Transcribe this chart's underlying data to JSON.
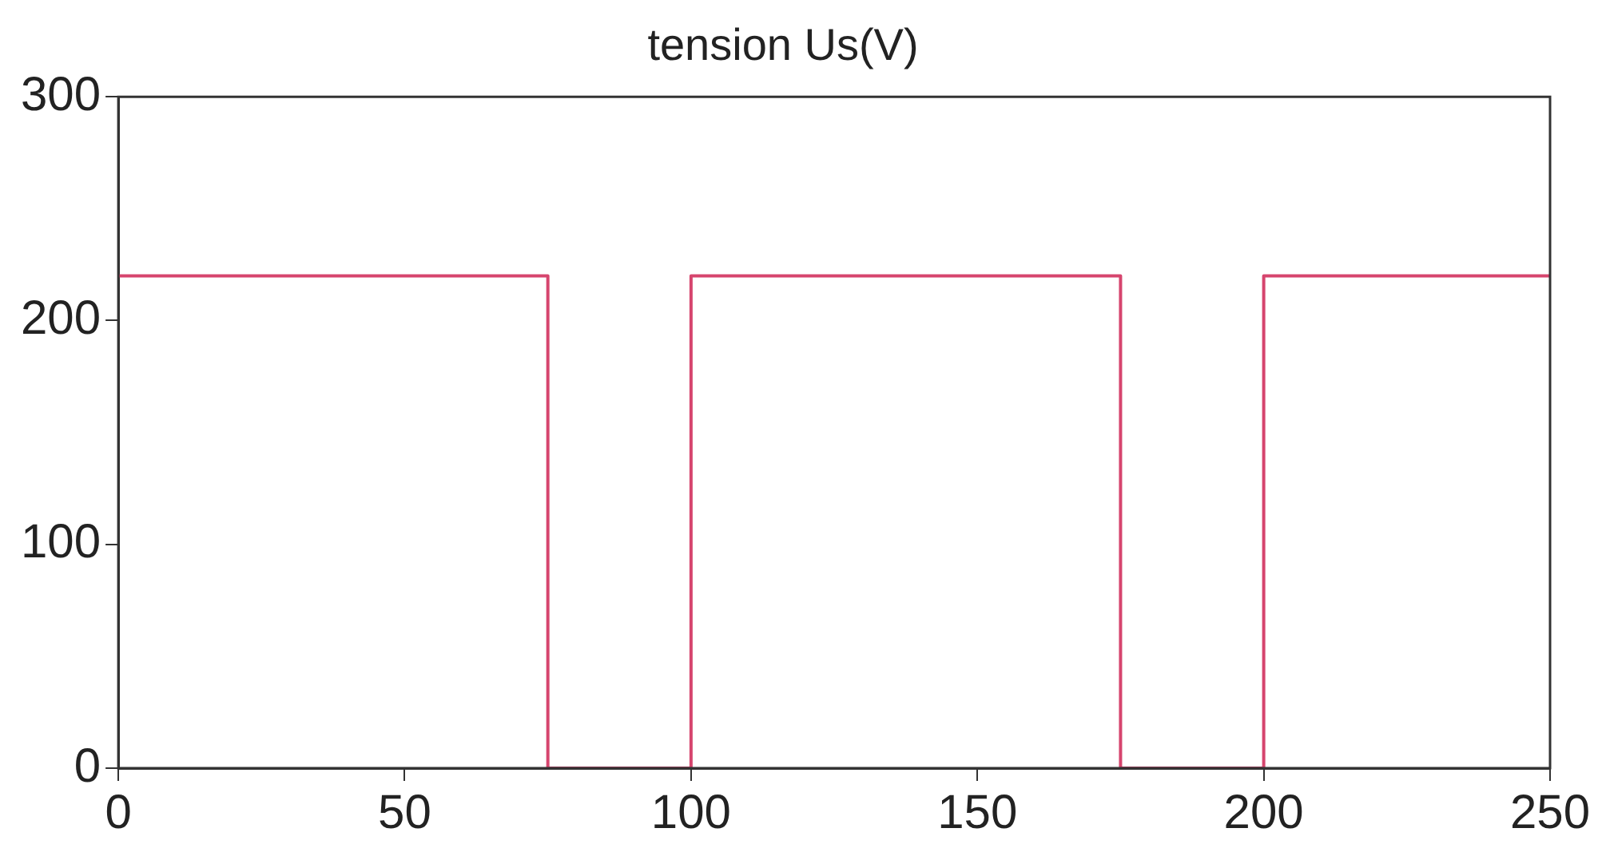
{
  "chart_data": {
    "type": "line",
    "title": "tension Us(V)",
    "x": [
      0,
      75,
      75,
      100,
      100,
      175,
      175,
      200,
      200,
      250
    ],
    "series": [
      {
        "color": "#d6456e",
        "values": [
          220,
          220,
          0,
          0,
          220,
          220,
          0,
          0,
          220,
          220
        ]
      }
    ],
    "xlim": [
      0,
      250
    ],
    "xticks": [
      0,
      50,
      100,
      150,
      200,
      250
    ],
    "ylim": [
      0,
      300
    ],
    "yticks": [
      0,
      100,
      200,
      300
    ],
    "grid": false,
    "legend": false,
    "marker": "none",
    "line_style": "solid"
  }
}
